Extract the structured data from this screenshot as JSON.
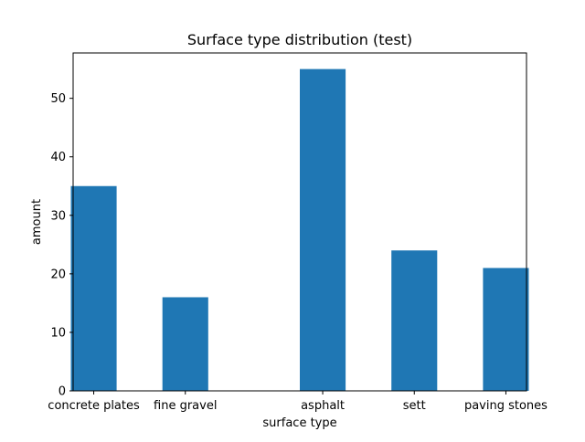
{
  "chart_data": {
    "type": "bar",
    "title": "Surface type distribution (test)",
    "xlabel": "surface type",
    "ylabel": "amount",
    "categories": [
      "concrete plates",
      "fine gravel",
      "asphalt",
      "sett",
      "paving stones"
    ],
    "x_positions": [
      0,
      1,
      2.5,
      3.5,
      4.5
    ],
    "values": [
      35,
      16,
      55,
      24,
      21
    ],
    "xlim": [
      -0.225,
      4.725
    ],
    "ylim": [
      0,
      57.75
    ],
    "yticks": [
      0,
      10,
      20,
      30,
      40,
      50
    ],
    "bar_color": "#1f77b4",
    "grid": false
  }
}
